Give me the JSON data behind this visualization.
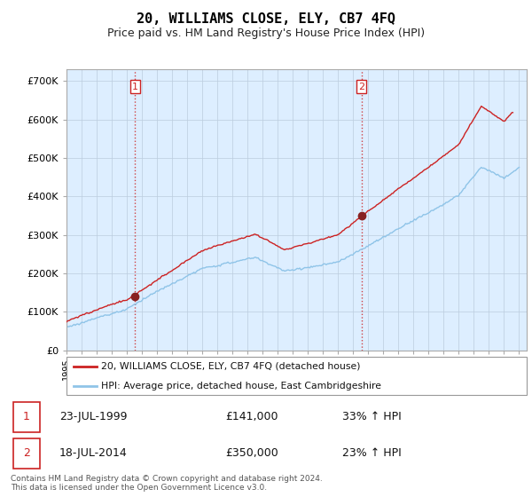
{
  "title": "20, WILLIAMS CLOSE, ELY, CB7 4FQ",
  "subtitle": "Price paid vs. HM Land Registry's House Price Index (HPI)",
  "title_fontsize": 11,
  "subtitle_fontsize": 9,
  "ylabel_ticks": [
    "£0",
    "£100K",
    "£200K",
    "£300K",
    "£400K",
    "£500K",
    "£600K",
    "£700K"
  ],
  "ytick_values": [
    0,
    100000,
    200000,
    300000,
    400000,
    500000,
    600000,
    700000
  ],
  "ylim": [
    0,
    730000
  ],
  "xlim_start": 1995.0,
  "xlim_end": 2025.5,
  "hpi_color": "#8fc4e8",
  "price_color": "#cc2222",
  "transaction1_x": 1999.55,
  "transaction1_y": 141000,
  "transaction2_x": 2014.54,
  "transaction2_y": 350000,
  "vline_color": "#cc2222",
  "marker_color": "#882222",
  "chart_bg_color": "#ddeeff",
  "legend_label_price": "20, WILLIAMS CLOSE, ELY, CB7 4FQ (detached house)",
  "legend_label_hpi": "HPI: Average price, detached house, East Cambridgeshire",
  "table_row1": [
    "1",
    "23-JUL-1999",
    "£141,000",
    "33% ↑ HPI"
  ],
  "table_row2": [
    "2",
    "18-JUL-2014",
    "£350,000",
    "23% ↑ HPI"
  ],
  "footer": "Contains HM Land Registry data © Crown copyright and database right 2024.\nThis data is licensed under the Open Government Licence v3.0.",
  "background_color": "#ffffff",
  "grid_color": "#bbccdd"
}
